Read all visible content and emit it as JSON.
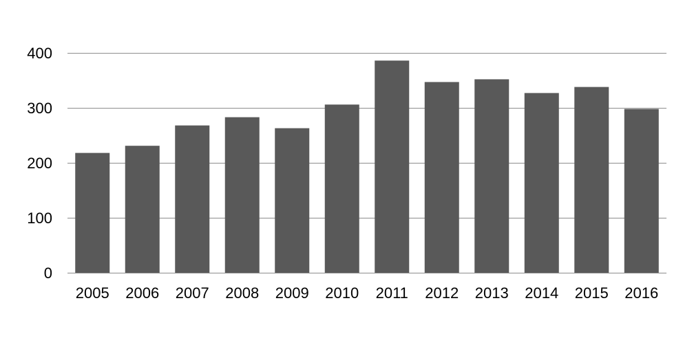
{
  "chart_data": {
    "type": "bar",
    "title": "",
    "xlabel": "",
    "ylabel": "",
    "categories": [
      "2005",
      "2006",
      "2007",
      "2008",
      "2009",
      "2010",
      "2011",
      "2012",
      "2013",
      "2014",
      "2015",
      "2016"
    ],
    "values": [
      218,
      231,
      268,
      283,
      263,
      306,
      386,
      347,
      352,
      327,
      338,
      298
    ],
    "ylim": [
      0,
      400
    ],
    "yticks": [
      0,
      100,
      200,
      300,
      400
    ],
    "grid": true,
    "legend": "none",
    "colors": {
      "bar": "#595959",
      "grid": "#8c8c8c",
      "text": "#000000"
    }
  }
}
